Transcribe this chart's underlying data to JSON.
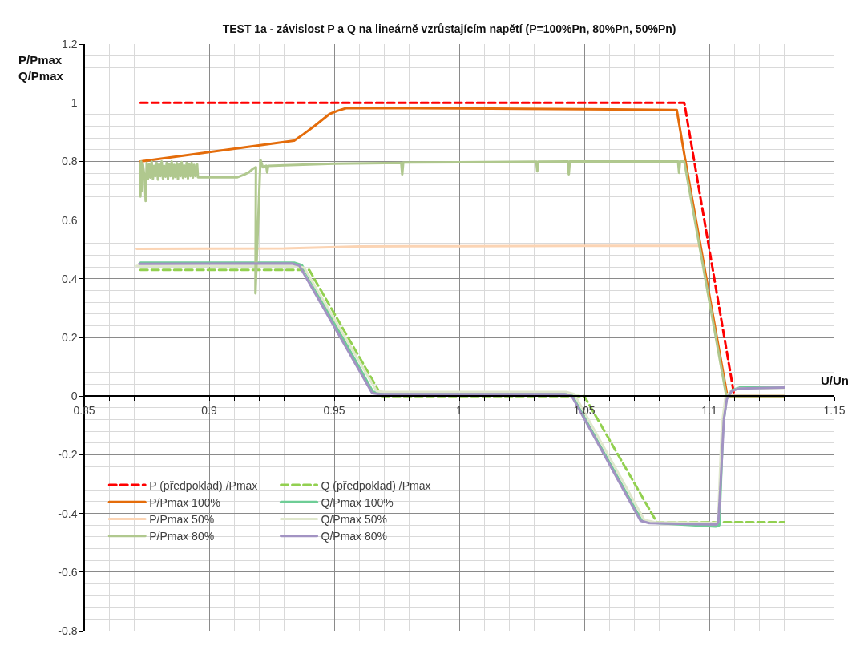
{
  "chart_data": {
    "type": "line",
    "title": "TEST 1a - závislost P a Q na lineárně vzrůstajícím napětí (P=100%Pn, 80%Pn, 50%Pn)",
    "xlabel": "U/Un",
    "ylabel": "P/Pmax\nQ/Pmax",
    "xlim": [
      0.85,
      1.15
    ],
    "ylim": [
      -0.8,
      1.2
    ],
    "xticks": [
      0.85,
      0.9,
      0.95,
      1,
      1.05,
      1.1,
      1.15
    ],
    "yticks": [
      -0.8,
      -0.6,
      -0.4,
      -0.2,
      0,
      0.2,
      0.4,
      0.6,
      0.8,
      1,
      1.2
    ],
    "grid": true,
    "legend": "bottom left",
    "series": [
      {
        "name": "P (předpoklad) /Pmax",
        "color": "#ff0000",
        "line_style": "dashed",
        "x": [
          0.8725,
          1.09,
          1.11
        ],
        "values": [
          1.0,
          1.0,
          0.0
        ]
      },
      {
        "name": "Q (předpoklad) /Pmax",
        "color": "#92d050",
        "line_style": "dashed",
        "x": [
          0.8725,
          0.94,
          0.969,
          1.05,
          1.079,
          1.13
        ],
        "values": [
          0.43,
          0.43,
          0.0,
          0.0,
          -0.43,
          -0.43
        ]
      },
      {
        "name": "P/Pmax 100%",
        "color": "#e46c0a",
        "line_style": "solid",
        "x": [
          0.8725,
          0.934,
          0.9377,
          0.9423,
          0.948,
          0.9514,
          0.955,
          1.0,
          1.05,
          1.087,
          1.0905,
          1.1072,
          1.13
        ],
        "values": [
          0.8,
          0.871,
          0.893,
          0.922,
          0.961,
          0.973,
          0.982,
          0.981,
          0.978,
          0.975,
          0.8,
          0.0,
          0.0
        ]
      },
      {
        "name": "Q/Pmax 100%",
        "color": "#6ecd96",
        "line_style": "solid",
        "x": [
          0.8725,
          0.934,
          0.937,
          0.9655,
          0.968,
          1.042,
          1.045,
          1.073,
          1.077,
          1.1025,
          1.104,
          1.1055,
          1.107,
          1.109,
          1.112,
          1.13
        ],
        "values": [
          0.455,
          0.455,
          0.447,
          0.015,
          0.012,
          0.012,
          0.005,
          -0.425,
          -0.432,
          -0.445,
          -0.44,
          -0.1,
          0.0,
          0.02,
          0.029,
          0.032
        ]
      },
      {
        "name": "P/Pmax 50%",
        "color": "#fbd4b4",
        "line_style": "solid",
        "x": [
          0.871,
          0.93,
          0.945,
          0.96,
          1.0,
          1.05,
          1.096
        ],
        "values": [
          0.502,
          0.503,
          0.507,
          0.51,
          0.511,
          0.512,
          0.512
        ]
      },
      {
        "name": "Q/Pmax 50%",
        "color": "#dfe7cc",
        "line_style": "solid",
        "x": [
          0.871,
          0.935,
          0.938,
          0.967,
          0.97,
          1.043,
          1.046,
          1.074,
          1.078,
          1.102,
          1.1035,
          1.105,
          1.1065,
          1.109,
          1.112,
          1.13
        ],
        "values": [
          0.444,
          0.444,
          0.437,
          0.017,
          0.014,
          0.014,
          0.007,
          -0.422,
          -0.43,
          -0.432,
          -0.43,
          -0.1,
          0.0,
          0.018,
          0.026,
          0.028
        ]
      },
      {
        "name": "P/Pmax 80%",
        "color": "#b0c88e",
        "line_style": "solid",
        "x": [
          0.8723,
          0.8725,
          0.8728,
          0.873,
          0.8735,
          0.8742,
          0.8746,
          0.875,
          0.8755,
          0.876,
          0.8765,
          0.877,
          0.8775,
          0.878,
          0.8785,
          0.879,
          0.8795,
          0.88,
          0.8805,
          0.881,
          0.8815,
          0.882,
          0.8825,
          0.883,
          0.8835,
          0.884,
          0.8845,
          0.885,
          0.8855,
          0.886,
          0.8865,
          0.887,
          0.8875,
          0.888,
          0.8885,
          0.889,
          0.8895,
          0.89,
          0.8905,
          0.891,
          0.8915,
          0.892,
          0.8925,
          0.893,
          0.8935,
          0.894,
          0.8945,
          0.8952,
          0.8955,
          0.9113,
          0.914,
          0.9159,
          0.9175,
          0.9187,
          0.9185,
          0.9205,
          0.9215,
          0.9228,
          0.9232,
          0.9236,
          0.93,
          0.95,
          0.9768,
          0.9772,
          0.9776,
          1.0,
          1.0308,
          1.0312,
          1.0316,
          1.0434,
          1.0438,
          1.0442,
          1.0875,
          1.0879,
          1.0883,
          1.09,
          1.1068,
          1.13
        ],
        "values": [
          0.79,
          0.68,
          0.8,
          0.7,
          0.79,
          0.74,
          0.665,
          0.795,
          0.74,
          0.79,
          0.745,
          0.8,
          0.74,
          0.785,
          0.75,
          0.795,
          0.738,
          0.79,
          0.75,
          0.8,
          0.742,
          0.785,
          0.748,
          0.795,
          0.74,
          0.79,
          0.75,
          0.8,
          0.743,
          0.788,
          0.747,
          0.795,
          0.74,
          0.79,
          0.75,
          0.798,
          0.744,
          0.786,
          0.748,
          0.795,
          0.742,
          0.79,
          0.75,
          0.795,
          0.745,
          0.788,
          0.75,
          0.79,
          0.746,
          0.746,
          0.755,
          0.763,
          0.775,
          0.78,
          0.35,
          0.805,
          0.78,
          0.785,
          0.762,
          0.785,
          0.787,
          0.792,
          0.795,
          0.756,
          0.796,
          0.797,
          0.799,
          0.766,
          0.799,
          0.8,
          0.756,
          0.8,
          0.8,
          0.761,
          0.8,
          0.8,
          0.0,
          0.0
        ]
      },
      {
        "name": "Q/Pmax 80%",
        "color": "#a293c3",
        "line_style": "solid",
        "x": [
          0.872,
          0.9331,
          0.936,
          0.9652,
          0.968,
          1.0421,
          1.045,
          1.0725,
          1.076,
          1.1029,
          1.1036,
          1.1045,
          1.1058,
          1.107,
          1.109,
          1.112,
          1.13
        ],
        "values": [
          0.451,
          0.452,
          0.445,
          0.01,
          0.007,
          0.007,
          0.0,
          -0.425,
          -0.433,
          -0.438,
          -0.43,
          -0.3,
          -0.08,
          -0.01,
          0.018,
          0.026,
          0.029
        ]
      }
    ]
  }
}
